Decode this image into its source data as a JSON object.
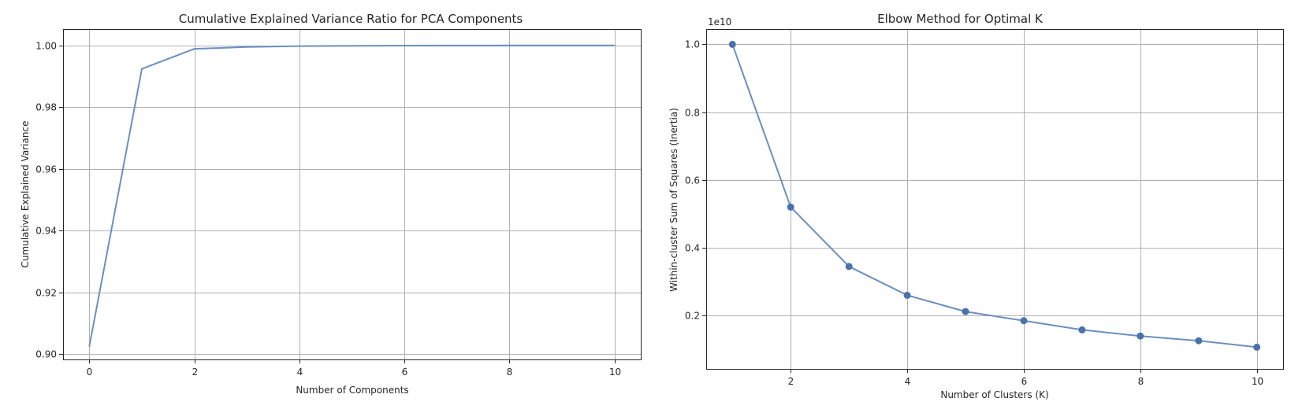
{
  "chart_data": [
    {
      "type": "line",
      "title": "Cumulative Explained Variance Ratio for PCA Components",
      "xlabel": "Number of Components",
      "ylabel": "Cumulative Explained Variance",
      "xlim": [
        -0.5,
        10.5
      ],
      "ylim": [
        0.8983,
        1.0053
      ],
      "x_ticks": [
        0,
        2,
        4,
        6,
        8,
        10
      ],
      "y_ticks": [
        0.9,
        0.92,
        0.94,
        0.96,
        0.98,
        1.0
      ],
      "x_tick_labels": [
        "0",
        "2",
        "4",
        "6",
        "8",
        "10"
      ],
      "y_tick_labels": [
        "0.90",
        "0.92",
        "0.94",
        "0.96",
        "0.98",
        "1.00"
      ],
      "grid": true,
      "markers": false,
      "color": "#6b8fbf",
      "series": [
        {
          "x": [
            0,
            1,
            2,
            3,
            4,
            5,
            6,
            7,
            8,
            9,
            10
          ],
          "values": [
            0.9025,
            0.9924,
            0.9989,
            0.9995,
            0.9998,
            0.9999,
            0.99995,
            0.99998,
            0.99999,
            1.0,
            1.0
          ]
        }
      ]
    },
    {
      "type": "line",
      "title": "Elbow Method for Optimal K",
      "xlabel": "Number of Clusters (K)",
      "ylabel": "Within-cluster Sum of Squares (Inertia)",
      "y_offset_label": "1e10",
      "xlim": [
        0.55,
        10.45
      ],
      "ylim": [
        0.043,
        1.045
      ],
      "x_ticks": [
        2,
        4,
        6,
        8,
        10
      ],
      "y_ticks": [
        0.2,
        0.4,
        0.6,
        0.8,
        1.0
      ],
      "x_tick_labels": [
        "2",
        "4",
        "6",
        "8",
        "10"
      ],
      "y_tick_labels": [
        "0.2",
        "0.4",
        "0.6",
        "0.8",
        "1.0"
      ],
      "grid": true,
      "markers": true,
      "color": "#6b8fbf",
      "marker_color": "#4a72ab",
      "series": [
        {
          "x": [
            1,
            2,
            3,
            4,
            5,
            6,
            7,
            8,
            9,
            10
          ],
          "values": [
            1.0,
            0.52,
            0.345,
            0.26,
            0.212,
            0.185,
            0.158,
            0.14,
            0.126,
            0.107
          ]
        }
      ]
    }
  ]
}
